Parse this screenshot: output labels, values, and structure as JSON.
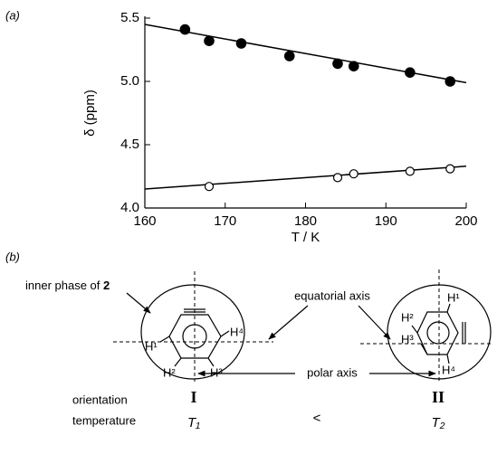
{
  "panel_labels": {
    "a": "(a)",
    "b": "(b)"
  },
  "chart_data": {
    "type": "scatter",
    "xlabel": "T / K",
    "ylabel": "δ (ppm)",
    "xlim": [
      160,
      200
    ],
    "xticks": [
      160,
      170,
      180,
      190,
      200
    ],
    "ylim": [
      4.0,
      5.5
    ],
    "yticks": [
      {
        "value": 4.0,
        "label": "4.0"
      },
      {
        "value": 4.5,
        "label": "4.5"
      },
      {
        "value": 5.0,
        "label": "5.0"
      },
      {
        "value": 5.5,
        "label": "5.5"
      }
    ],
    "series": [
      {
        "marker": "filled",
        "color": "#000000",
        "x": [
          165,
          168,
          172,
          178,
          184,
          186,
          193,
          198
        ],
        "values": [
          5.41,
          5.32,
          5.3,
          5.2,
          5.14,
          5.12,
          5.07,
          5.0
        ]
      },
      {
        "marker": "open",
        "color": "#000000",
        "x": [
          168,
          184,
          186,
          193,
          198
        ],
        "values": [
          4.17,
          4.24,
          4.27,
          4.29,
          4.31
        ]
      }
    ],
    "fits": [
      {
        "color": "#000000",
        "x": [
          160,
          200
        ],
        "values": [
          5.45,
          4.99
        ]
      },
      {
        "color": "#000000",
        "x": [
          160,
          200
        ],
        "values": [
          4.15,
          4.33
        ]
      }
    ]
  },
  "diagram": {
    "inner_phase": {
      "text": "inner phase of",
      "compound": "2"
    },
    "equatorial_axis": "equatorial axis",
    "polar_axis": "polar axis",
    "left": {
      "h1": "H¹",
      "h2": "H²",
      "h3": "H³",
      "h4": "H⁴",
      "orientation": "I",
      "temperature": "T₁"
    },
    "right": {
      "h1": "H¹",
      "h2": "H²",
      "h3": "H³",
      "h4": "H⁴",
      "orientation": "II",
      "temperature": "T₂"
    },
    "row_labels": {
      "orientation": "orientation",
      "temperature": "temperature"
    },
    "relation": "<"
  }
}
